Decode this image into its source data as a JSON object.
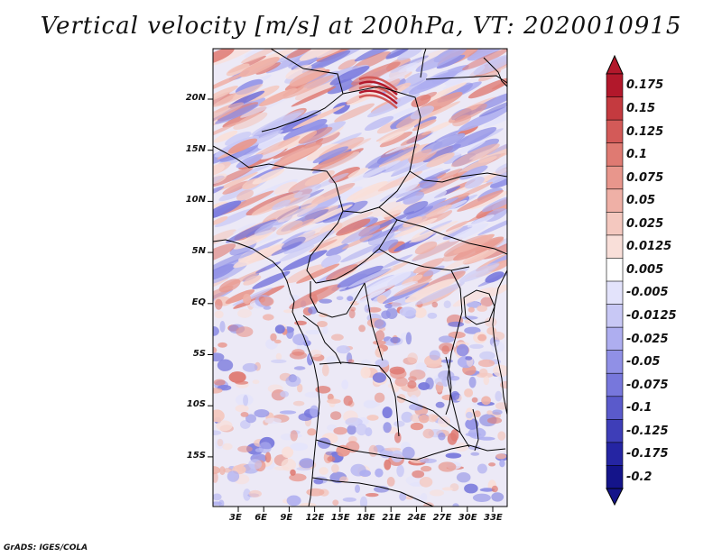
{
  "title": "Vertical velocity [m/s] at 200hPa, VT: 2020010915",
  "credit": "GrADS: IGES/COLA",
  "map": {
    "lat_labels": [
      "20N",
      "15N",
      "10N",
      "5N",
      "EQ",
      "5S",
      "10S",
      "15S"
    ],
    "lon_labels": [
      "3E",
      "6E",
      "9E",
      "12E",
      "15E",
      "18E",
      "21E",
      "24E",
      "27E",
      "30E",
      "33E"
    ]
  },
  "colorbar": {
    "labels": [
      "0.175",
      "0.15",
      "0.125",
      "0.1",
      "0.075",
      "0.05",
      "0.025",
      "0.0125",
      "0.005",
      "-0.005",
      "-0.0125",
      "-0.025",
      "-0.05",
      "-0.075",
      "-0.1",
      "-0.125",
      "-0.175",
      "-0.2"
    ],
    "colors": [
      "#b2182b",
      "#c43a3f",
      "#d35a58",
      "#df7a72",
      "#e8968c",
      "#efb0a6",
      "#f4c8bf",
      "#f9dfd9",
      "#ffffff",
      "#e3e3fb",
      "#c8c8f5",
      "#aeaef0",
      "#9090e6",
      "#7777dc",
      "#5a5acb",
      "#3e3eb8",
      "#2525a3",
      "#14148a"
    ]
  }
}
